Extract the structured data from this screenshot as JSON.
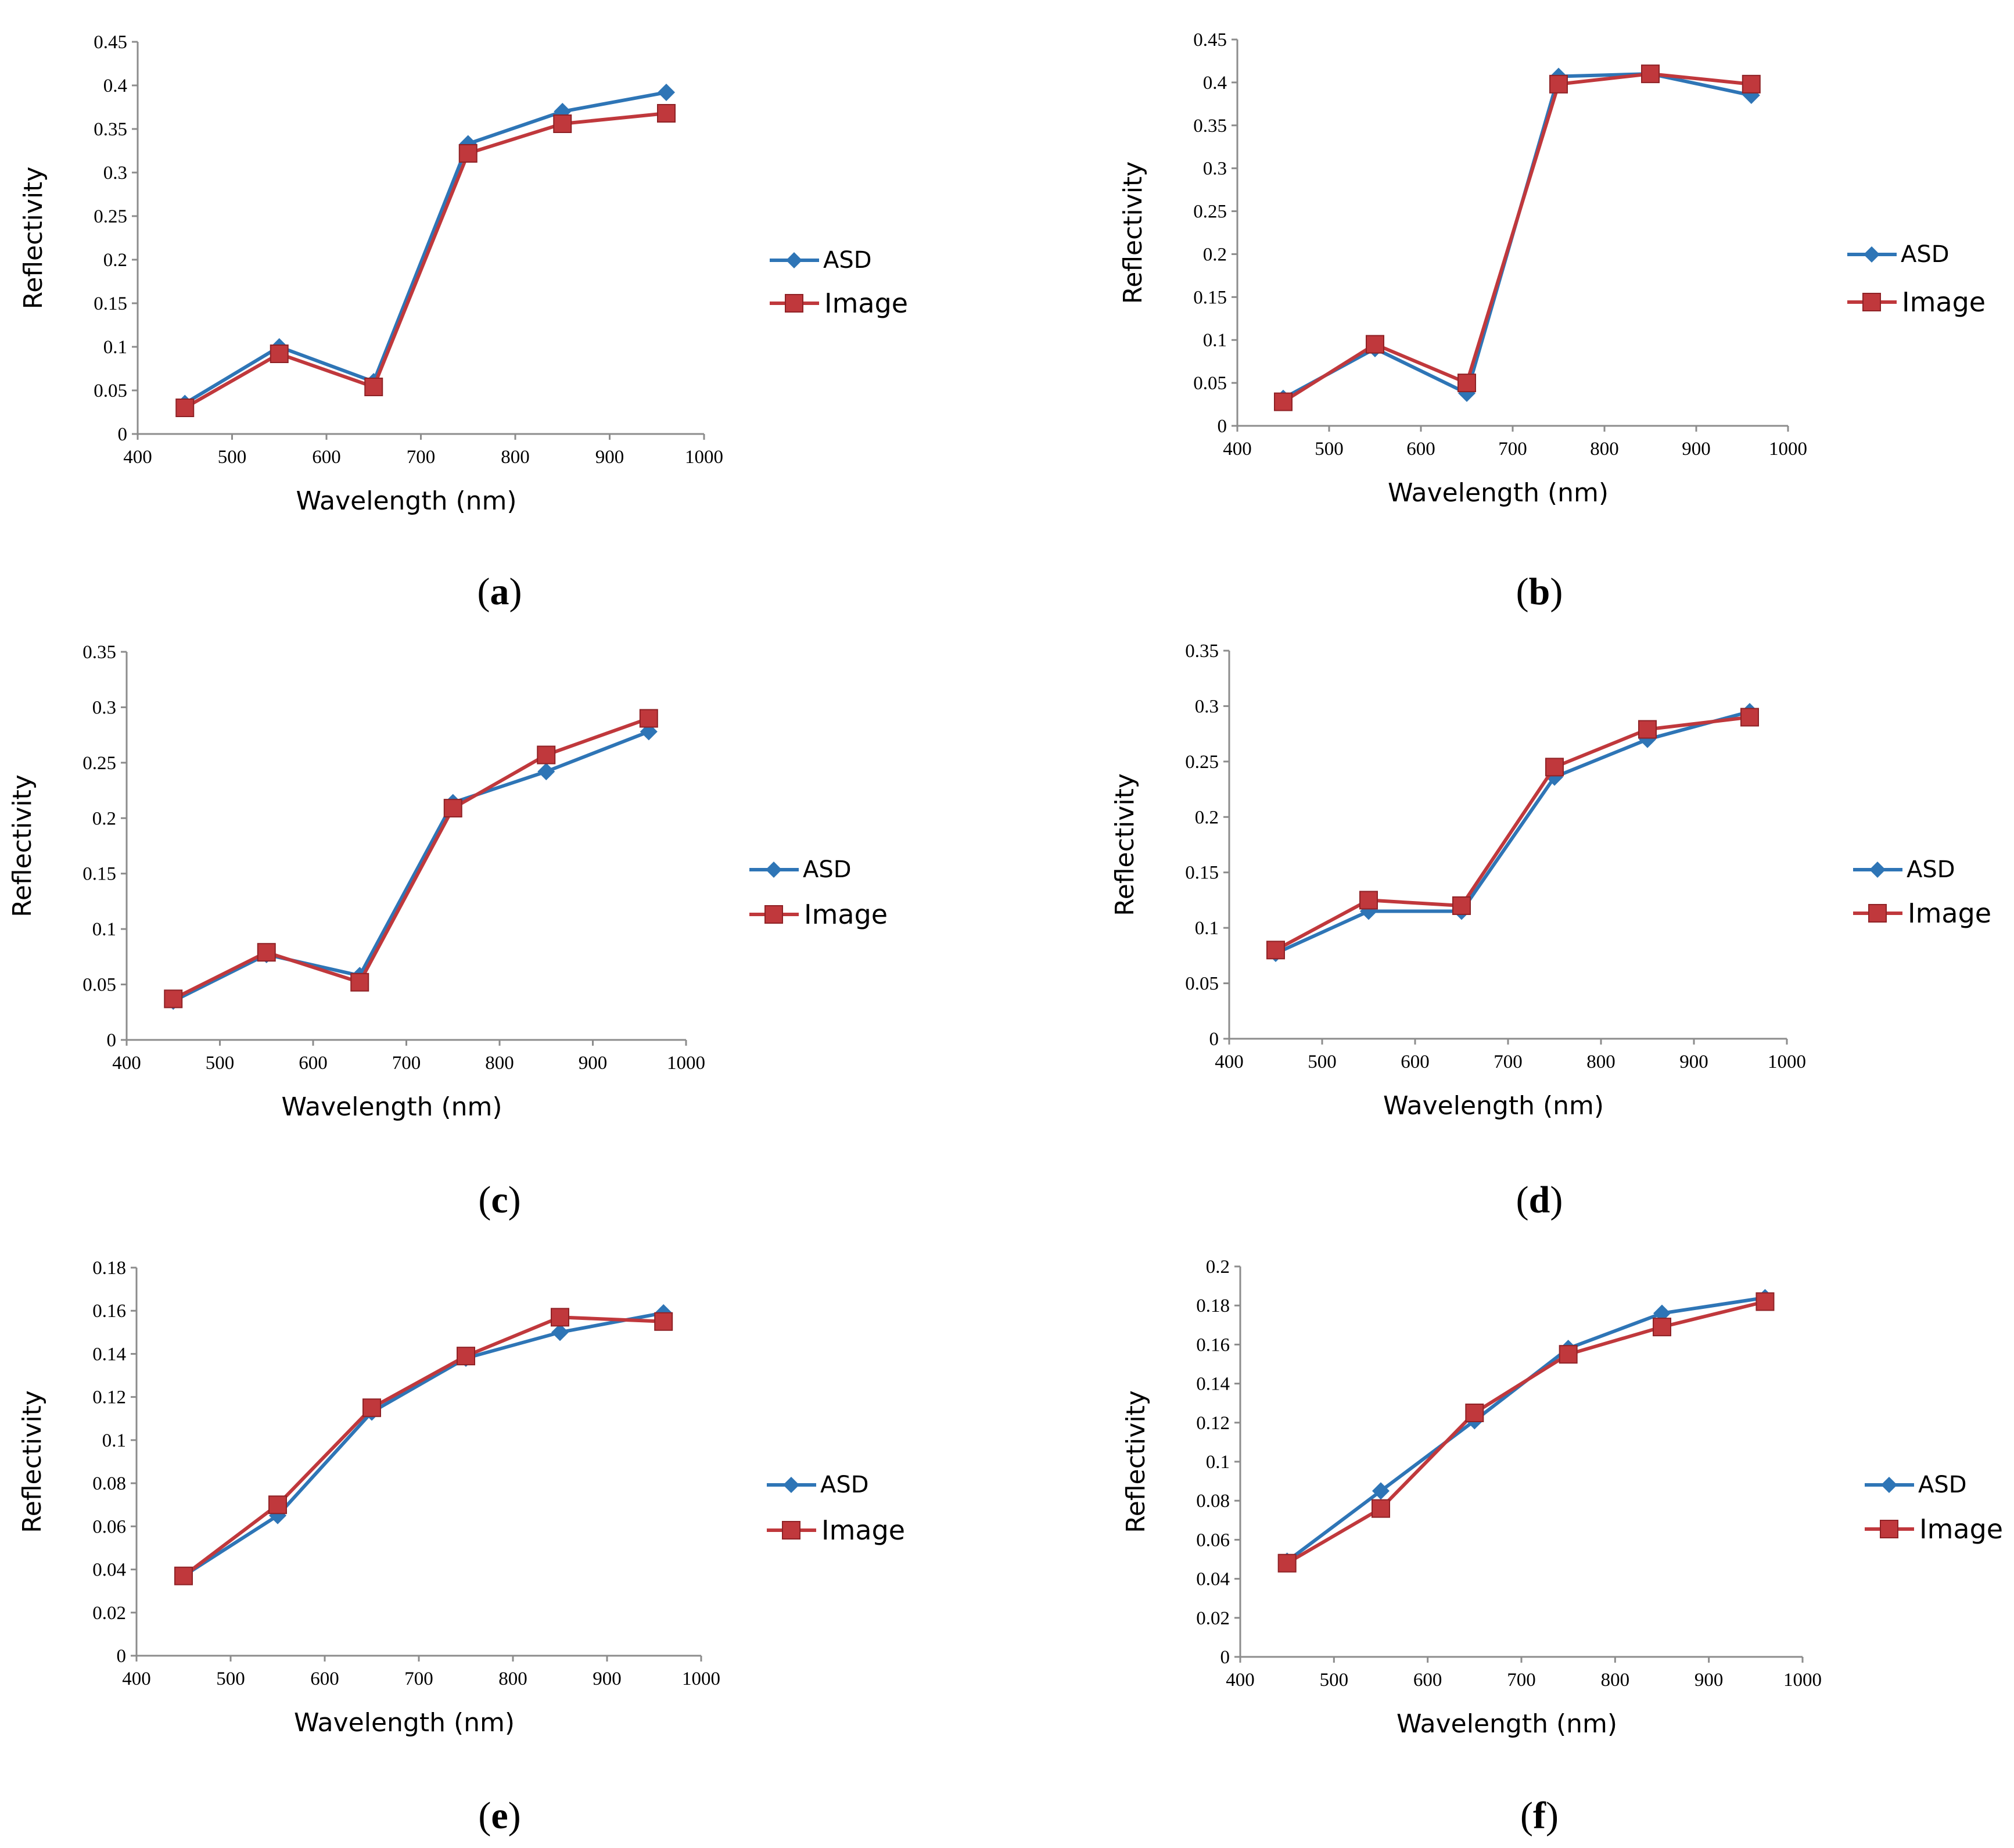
{
  "colors": {
    "asd": "#2E75B6",
    "image": "#C0383C",
    "axis": "#8C8C8C",
    "text": "#000000"
  },
  "legend": {
    "asd_label": "ASD",
    "image_label": "Image"
  },
  "chart_data": [
    {
      "id": "a",
      "type": "line",
      "panel_label": "a",
      "xlabel": "Wavelength (nm)",
      "ylabel": "Reflectivity",
      "xlim": [
        400,
        1000
      ],
      "ylim": [
        0,
        0.45
      ],
      "x_ticks": [
        "400",
        "500",
        "600",
        "700",
        "800",
        "900",
        "1000"
      ],
      "y_ticks": [
        "0",
        "0.05",
        "0.1",
        "0.15",
        "0.2",
        "0.25",
        "0.3",
        "0.35",
        "0.4",
        "0.45"
      ],
      "x": [
        450,
        550,
        650,
        750,
        850,
        960
      ],
      "series": [
        {
          "name": "ASD",
          "values": [
            0.035,
            0.1,
            0.06,
            0.333,
            0.37,
            0.392
          ]
        },
        {
          "name": "Image",
          "values": [
            0.03,
            0.092,
            0.054,
            0.322,
            0.356,
            0.368
          ]
        }
      ]
    },
    {
      "id": "b",
      "type": "line",
      "panel_label": "b",
      "xlabel": "Wavelength (nm)",
      "ylabel": "Reflectivity",
      "xlim": [
        400,
        1000
      ],
      "ylim": [
        0,
        0.45
      ],
      "x_ticks": [
        "400",
        "500",
        "600",
        "700",
        "800",
        "900",
        "1000"
      ],
      "y_ticks": [
        "0",
        "0.05",
        "0.1",
        "0.15",
        "0.2",
        "0.25",
        "0.3",
        "0.35",
        "0.4",
        "0.45"
      ],
      "x": [
        450,
        550,
        650,
        750,
        850,
        960
      ],
      "series": [
        {
          "name": "ASD",
          "values": [
            0.032,
            0.09,
            0.038,
            0.407,
            0.41,
            0.385
          ]
        },
        {
          "name": "Image",
          "values": [
            0.028,
            0.095,
            0.05,
            0.398,
            0.41,
            0.398
          ]
        }
      ]
    },
    {
      "id": "c",
      "type": "line",
      "panel_label": "c",
      "xlabel": "Wavelength (nm)",
      "ylabel": "Reflectivity",
      "xlim": [
        400,
        1000
      ],
      "ylim": [
        0,
        0.35
      ],
      "x_ticks": [
        "400",
        "500",
        "600",
        "700",
        "800",
        "900",
        "1000"
      ],
      "y_ticks": [
        "0",
        "0.05",
        "0.1",
        "0.15",
        "0.2",
        "0.25",
        "0.3",
        "0.35"
      ],
      "x": [
        450,
        550,
        650,
        750,
        850,
        960
      ],
      "series": [
        {
          "name": "ASD",
          "values": [
            0.035,
            0.077,
            0.058,
            0.214,
            0.242,
            0.278
          ]
        },
        {
          "name": "Image",
          "values": [
            0.037,
            0.079,
            0.052,
            0.209,
            0.257,
            0.29
          ]
        }
      ]
    },
    {
      "id": "d",
      "type": "line",
      "panel_label": "d",
      "xlabel": "Wavelength (nm)",
      "ylabel": "Reflectivity",
      "xlim": [
        400,
        1000
      ],
      "ylim": [
        0,
        0.35
      ],
      "x_ticks": [
        "400",
        "500",
        "600",
        "700",
        "800",
        "900",
        "1000"
      ],
      "y_ticks": [
        "0",
        "0.05",
        "0.1",
        "0.15",
        "0.2",
        "0.25",
        "0.3",
        "0.35"
      ],
      "x": [
        450,
        550,
        650,
        750,
        850,
        960
      ],
      "series": [
        {
          "name": "ASD",
          "values": [
            0.077,
            0.115,
            0.115,
            0.236,
            0.27,
            0.295
          ]
        },
        {
          "name": "Image",
          "values": [
            0.08,
            0.125,
            0.12,
            0.245,
            0.279,
            0.29
          ]
        }
      ]
    },
    {
      "id": "e",
      "type": "line",
      "panel_label": "e",
      "xlabel": "Wavelength (nm)",
      "ylabel": "Reflectivity",
      "xlim": [
        400,
        1000
      ],
      "ylim": [
        0,
        0.18
      ],
      "x_ticks": [
        "400",
        "500",
        "600",
        "700",
        "800",
        "900",
        "1000"
      ],
      "y_ticks": [
        "0",
        "0.02",
        "0.04",
        "0.06",
        "0.08",
        "0.1",
        "0.12",
        "0.14",
        "0.16",
        "0.18"
      ],
      "x": [
        450,
        550,
        650,
        750,
        850,
        960
      ],
      "series": [
        {
          "name": "ASD",
          "values": [
            0.037,
            0.065,
            0.113,
            0.138,
            0.15,
            0.159
          ]
        },
        {
          "name": "Image",
          "values": [
            0.037,
            0.07,
            0.115,
            0.139,
            0.157,
            0.155
          ]
        }
      ]
    },
    {
      "id": "f",
      "type": "line",
      "panel_label": "f",
      "xlabel": "Wavelength (nm)",
      "ylabel": "Reflectivity",
      "xlim": [
        400,
        1000
      ],
      "ylim": [
        0,
        0.2
      ],
      "x_ticks": [
        "400",
        "500",
        "600",
        "700",
        "800",
        "900",
        "1000"
      ],
      "y_ticks": [
        "0",
        "0.02",
        "0.04",
        "0.06",
        "0.08",
        "0.1",
        "0.12",
        "0.14",
        "0.16",
        "0.18",
        "0.2"
      ],
      "x": [
        450,
        550,
        650,
        750,
        850,
        960
      ],
      "series": [
        {
          "name": "ASD",
          "values": [
            0.049,
            0.085,
            0.121,
            0.158,
            0.176,
            0.184
          ]
        },
        {
          "name": "Image",
          "values": [
            0.048,
            0.076,
            0.125,
            0.155,
            0.169,
            0.182
          ]
        }
      ]
    }
  ]
}
